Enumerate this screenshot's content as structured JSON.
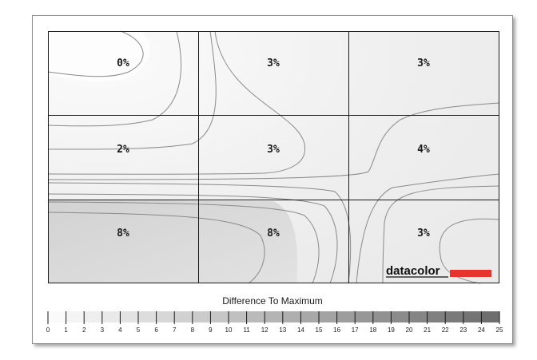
{
  "chart_data": {
    "type": "heatmap",
    "title": "",
    "rows": 3,
    "cols": 3,
    "values": [
      [
        0,
        3,
        3
      ],
      [
        2,
        3,
        4
      ],
      [
        8,
        8,
        3
      ]
    ],
    "cell_labels": [
      [
        "0%",
        "3%",
        "3%"
      ],
      [
        "2%",
        "3%",
        "4%"
      ],
      [
        "8%",
        "8%",
        "3%"
      ]
    ],
    "legend_title": "Difference To Maximum",
    "scale_ticks": [
      "0",
      "1",
      "2",
      "3",
      "4",
      "5",
      "6",
      "7",
      "8",
      "9",
      "10",
      "11",
      "12",
      "13",
      "14",
      "15",
      "16",
      "17",
      "18",
      "19",
      "20",
      "21",
      "22",
      "23",
      "24",
      "25"
    ],
    "scale_min": 0,
    "scale_max": 25
  },
  "brand": {
    "text": "datacolor",
    "accent_color": "#e8342e"
  },
  "colors": {
    "grid": "#1a1a1a",
    "contour": "#8a8a8a"
  }
}
